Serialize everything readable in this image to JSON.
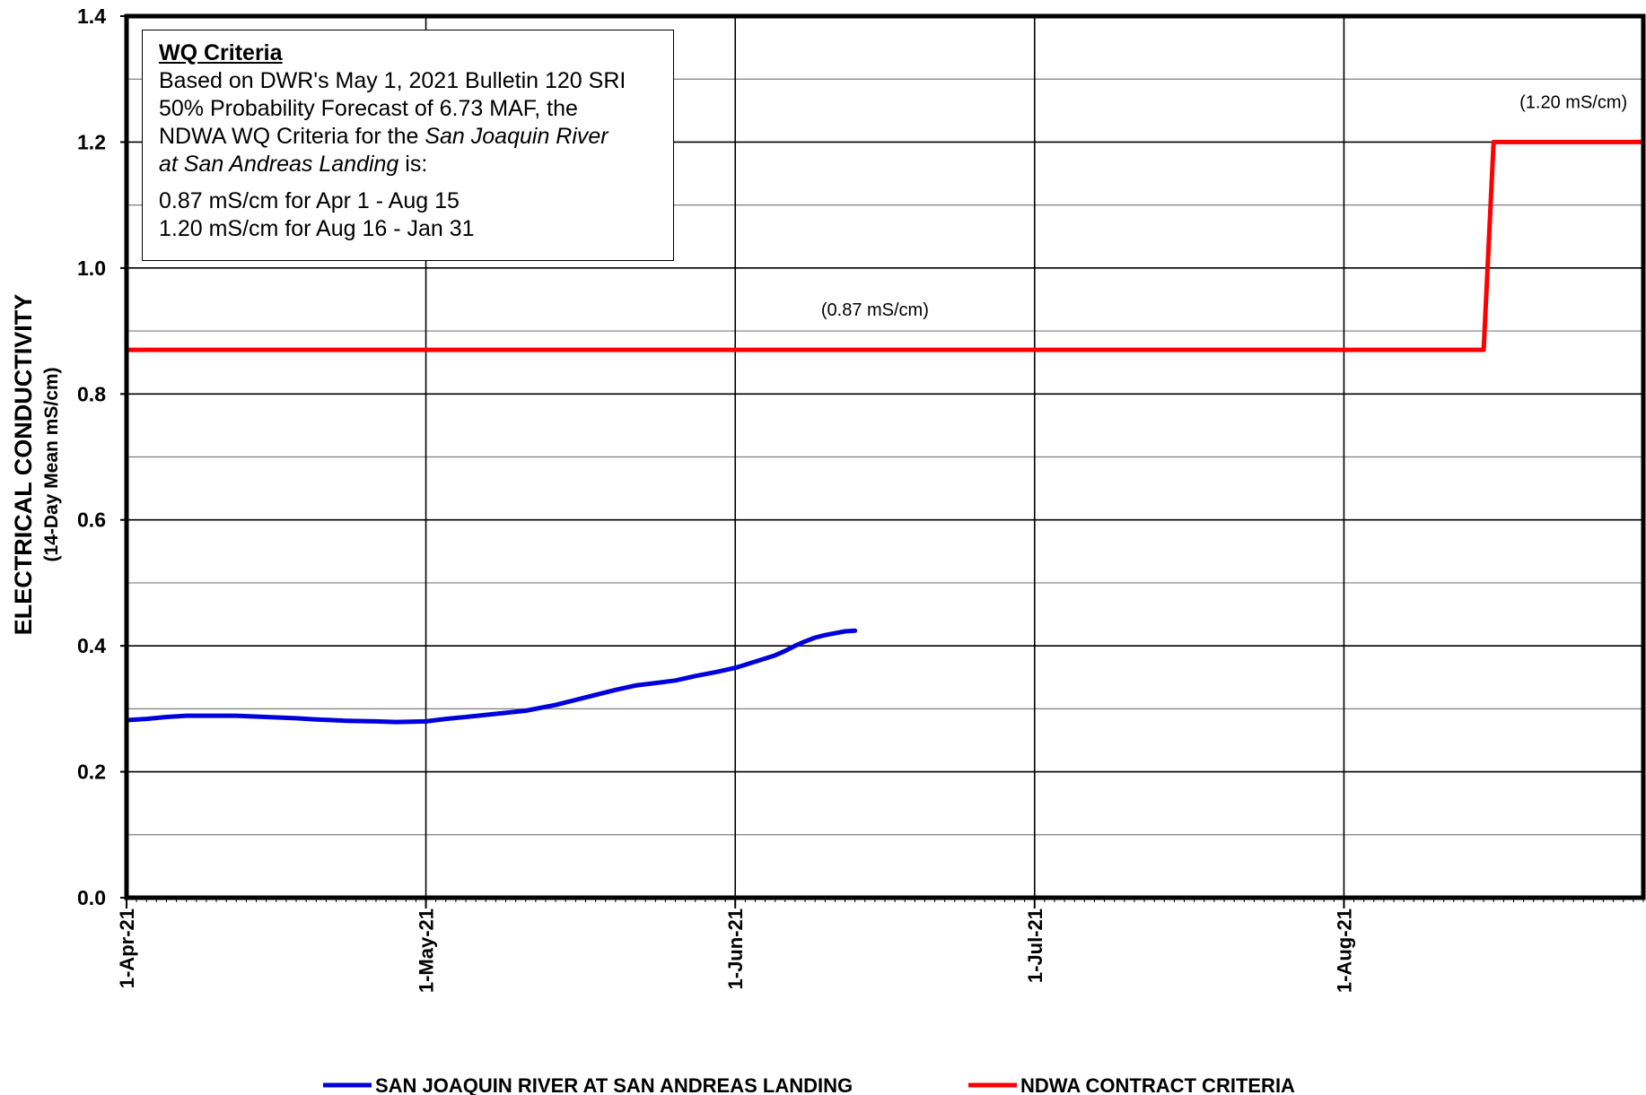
{
  "chart_data": {
    "type": "line",
    "ylabel": "ELECTRICAL CONDUCTIVITY",
    "ylabel_sub": "(14-Day Mean mS/cm)",
    "ylim": [
      0.0,
      1.4
    ],
    "yticks": [
      "0.0",
      "0.2",
      "0.4",
      "0.6",
      "0.8",
      "1.0",
      "1.2",
      "1.4"
    ],
    "xlim": [
      "2021-04-01",
      "2021-08-31"
    ],
    "xticks": [
      {
        "date": "2021-04-01",
        "label": "1-Apr-21"
      },
      {
        "date": "2021-05-01",
        "label": "1-May-21"
      },
      {
        "date": "2021-06-01",
        "label": "1-Jun-21"
      },
      {
        "date": "2021-07-01",
        "label": "1-Jul-21"
      },
      {
        "date": "2021-08-01",
        "label": "1-Aug-21"
      }
    ],
    "grid": true,
    "legend_position": "bottom",
    "series": [
      {
        "name": "SAN JOAQUIN RIVER AT SAN ANDREAS LANDING",
        "color": "#0000dd",
        "points": [
          [
            "2021-04-01",
            0.282
          ],
          [
            "2021-04-03",
            0.284
          ],
          [
            "2021-04-05",
            0.287
          ],
          [
            "2021-04-07",
            0.289
          ],
          [
            "2021-04-10",
            0.289
          ],
          [
            "2021-04-12",
            0.289
          ],
          [
            "2021-04-15",
            0.287
          ],
          [
            "2021-04-18",
            0.285
          ],
          [
            "2021-04-20",
            0.283
          ],
          [
            "2021-04-23",
            0.281
          ],
          [
            "2021-04-26",
            0.28
          ],
          [
            "2021-04-28",
            0.279
          ],
          [
            "2021-05-01",
            0.28
          ],
          [
            "2021-05-03",
            0.284
          ],
          [
            "2021-05-05",
            0.287
          ],
          [
            "2021-05-08",
            0.292
          ],
          [
            "2021-05-11",
            0.297
          ],
          [
            "2021-05-14",
            0.306
          ],
          [
            "2021-05-17",
            0.318
          ],
          [
            "2021-05-20",
            0.33
          ],
          [
            "2021-05-22",
            0.337
          ],
          [
            "2021-05-24",
            0.341
          ],
          [
            "2021-05-26",
            0.345
          ],
          [
            "2021-05-28",
            0.352
          ],
          [
            "2021-05-30",
            0.358
          ],
          [
            "2021-06-01",
            0.365
          ],
          [
            "2021-06-03",
            0.375
          ],
          [
            "2021-06-05",
            0.385
          ],
          [
            "2021-06-06",
            0.392
          ],
          [
            "2021-06-07",
            0.4
          ],
          [
            "2021-06-08",
            0.407
          ],
          [
            "2021-06-09",
            0.413
          ],
          [
            "2021-06-10",
            0.417
          ],
          [
            "2021-06-11",
            0.42
          ],
          [
            "2021-06-12",
            0.423
          ],
          [
            "2021-06-13",
            0.424
          ]
        ]
      },
      {
        "name": "NDWA CONTRACT CRITERIA",
        "color": "#ff0000",
        "points": [
          [
            "2021-04-01",
            0.87
          ],
          [
            "2021-08-15",
            0.87
          ],
          [
            "2021-08-16",
            1.2
          ],
          [
            "2021-08-31",
            1.2
          ]
        ]
      }
    ],
    "annotations": [
      {
        "text": "(0.87 mS/cm)",
        "x": "2021-06-15",
        "y": 0.87
      },
      {
        "text": "(1.20 mS/cm)",
        "x": "2021-08-24",
        "y": 1.2
      }
    ]
  },
  "criteria_box": {
    "title": "WQ Criteria",
    "line1": "Based on DWR's May 1, 2021 Bulletin 120 SRI",
    "line2": "50% Probability Forecast of 6.73 MAF, the",
    "line3_pre": "NDWA WQ Criteria for the ",
    "line3_italic": "San Joaquin River",
    "line4_italic": "at San Andreas Landing",
    "line4_post": " is:",
    "line5": "0.87 mS/cm for Apr 1 - Aug 15",
    "line6": "1.20 mS/cm for Aug 16 - Jan 31"
  }
}
